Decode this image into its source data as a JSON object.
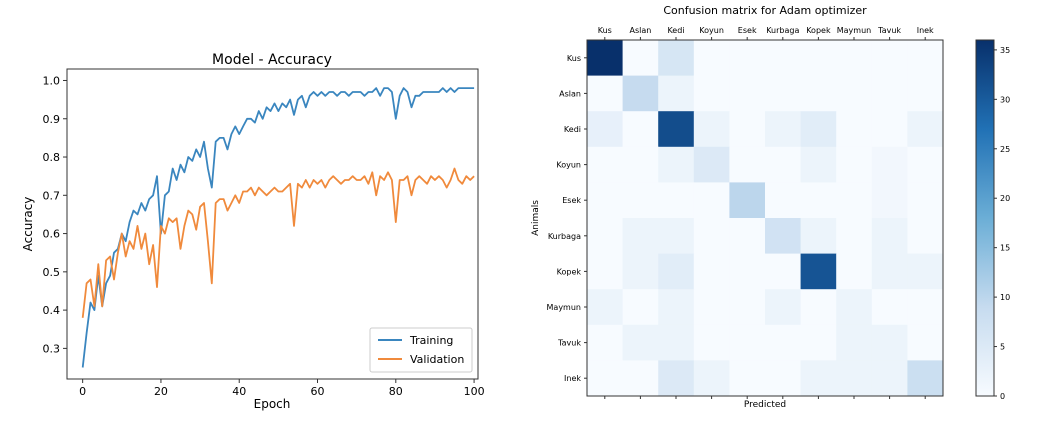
{
  "chart_data": [
    {
      "type": "line",
      "title": "Model - Accuracy",
      "xlabel": "Epoch",
      "ylabel": "Accuracy",
      "xlim": [
        -4,
        101
      ],
      "ylim": [
        0.22,
        1.03
      ],
      "xticks": [
        0,
        20,
        40,
        60,
        80,
        100
      ],
      "yticks": [
        0.3,
        0.4,
        0.5,
        0.6,
        0.7,
        0.8,
        0.9,
        1.0
      ],
      "legend_position": "bottom-right",
      "series": [
        {
          "name": "Training",
          "color": "#3a86bf",
          "x": [
            0,
            1,
            2,
            3,
            4,
            5,
            6,
            7,
            8,
            9,
            10,
            11,
            12,
            13,
            14,
            15,
            16,
            17,
            18,
            19,
            20,
            21,
            22,
            23,
            24,
            25,
            26,
            27,
            28,
            29,
            30,
            31,
            32,
            33,
            34,
            35,
            36,
            37,
            38,
            39,
            40,
            41,
            42,
            43,
            44,
            45,
            46,
            47,
            48,
            49,
            50,
            51,
            52,
            53,
            54,
            55,
            56,
            57,
            58,
            59,
            60,
            61,
            62,
            63,
            64,
            65,
            66,
            67,
            68,
            69,
            70,
            71,
            72,
            73,
            74,
            75,
            76,
            77,
            78,
            79,
            80,
            81,
            82,
            83,
            84,
            85,
            86,
            87,
            88,
            89,
            90,
            91,
            92,
            93,
            94,
            95,
            96,
            97,
            98,
            99,
            100
          ],
          "y": [
            0.25,
            0.34,
            0.42,
            0.4,
            0.49,
            0.41,
            0.47,
            0.49,
            0.55,
            0.56,
            0.6,
            0.58,
            0.63,
            0.66,
            0.65,
            0.68,
            0.66,
            0.69,
            0.7,
            0.75,
            0.6,
            0.7,
            0.71,
            0.77,
            0.74,
            0.78,
            0.76,
            0.8,
            0.79,
            0.82,
            0.8,
            0.84,
            0.77,
            0.72,
            0.84,
            0.85,
            0.85,
            0.82,
            0.86,
            0.88,
            0.86,
            0.88,
            0.9,
            0.9,
            0.89,
            0.92,
            0.9,
            0.93,
            0.92,
            0.94,
            0.92,
            0.94,
            0.93,
            0.95,
            0.91,
            0.95,
            0.96,
            0.93,
            0.96,
            0.97,
            0.96,
            0.97,
            0.96,
            0.97,
            0.97,
            0.96,
            0.97,
            0.97,
            0.96,
            0.97,
            0.97,
            0.97,
            0.96,
            0.97,
            0.97,
            0.98,
            0.96,
            0.98,
            0.98,
            0.97,
            0.9,
            0.96,
            0.98,
            0.97,
            0.93,
            0.96,
            0.96,
            0.97,
            0.97,
            0.97,
            0.97,
            0.97,
            0.98,
            0.97,
            0.98,
            0.97,
            0.98,
            0.98,
            0.98,
            0.98,
            0.98
          ]
        },
        {
          "name": "Validation",
          "color": "#f08a3c",
          "x": [
            0,
            1,
            2,
            3,
            4,
            5,
            6,
            7,
            8,
            9,
            10,
            11,
            12,
            13,
            14,
            15,
            16,
            17,
            18,
            19,
            20,
            21,
            22,
            23,
            24,
            25,
            26,
            27,
            28,
            29,
            30,
            31,
            32,
            33,
            34,
            35,
            36,
            37,
            38,
            39,
            40,
            41,
            42,
            43,
            44,
            45,
            46,
            47,
            48,
            49,
            50,
            51,
            52,
            53,
            54,
            55,
            56,
            57,
            58,
            59,
            60,
            61,
            62,
            63,
            64,
            65,
            66,
            67,
            68,
            69,
            70,
            71,
            72,
            73,
            74,
            75,
            76,
            77,
            78,
            79,
            80,
            81,
            82,
            83,
            84,
            85,
            86,
            87,
            88,
            89,
            90,
            91,
            92,
            93,
            94,
            95,
            96,
            97,
            98,
            99,
            100
          ],
          "y": [
            0.38,
            0.47,
            0.48,
            0.41,
            0.52,
            0.41,
            0.53,
            0.54,
            0.48,
            0.55,
            0.6,
            0.54,
            0.58,
            0.56,
            0.62,
            0.56,
            0.6,
            0.52,
            0.57,
            0.46,
            0.62,
            0.6,
            0.64,
            0.63,
            0.64,
            0.56,
            0.62,
            0.66,
            0.65,
            0.61,
            0.67,
            0.68,
            0.58,
            0.47,
            0.68,
            0.69,
            0.69,
            0.66,
            0.68,
            0.7,
            0.68,
            0.71,
            0.71,
            0.72,
            0.7,
            0.72,
            0.71,
            0.7,
            0.71,
            0.72,
            0.71,
            0.71,
            0.72,
            0.73,
            0.62,
            0.73,
            0.72,
            0.74,
            0.72,
            0.74,
            0.73,
            0.74,
            0.72,
            0.74,
            0.75,
            0.74,
            0.73,
            0.74,
            0.74,
            0.75,
            0.74,
            0.74,
            0.75,
            0.73,
            0.76,
            0.7,
            0.75,
            0.74,
            0.76,
            0.74,
            0.63,
            0.74,
            0.74,
            0.75,
            0.7,
            0.74,
            0.75,
            0.74,
            0.73,
            0.75,
            0.74,
            0.75,
            0.74,
            0.72,
            0.74,
            0.77,
            0.74,
            0.73,
            0.75,
            0.74,
            0.75
          ]
        }
      ]
    },
    {
      "type": "heatmap",
      "title": "Confusion matrix for Adam optimizer",
      "xlabel": "Predicted",
      "ylabel": "Animals",
      "x_categories": [
        "Kus",
        "Aslan",
        "Kedi",
        "Koyun",
        "Esek",
        "Kurbaga",
        "Kopek",
        "Maymun",
        "Tavuk",
        "Inek"
      ],
      "y_categories": [
        "Kus",
        "Aslan",
        "Kedi",
        "Koyun",
        "Esek",
        "Kurbaga",
        "Kopek",
        "Maymun",
        "Tavuk",
        "Inek"
      ],
      "values": [
        [
          36,
          0,
          6,
          0,
          0,
          0,
          0,
          0,
          0,
          0
        ],
        [
          0,
          9,
          2,
          0,
          0,
          0,
          0,
          0,
          0,
          0
        ],
        [
          3,
          0,
          32,
          2,
          0,
          2,
          4,
          0,
          0,
          2
        ],
        [
          0,
          0,
          2,
          5,
          0,
          0,
          2,
          0,
          1,
          0
        ],
        [
          0,
          0,
          0,
          0,
          10,
          0,
          0,
          0,
          1,
          0
        ],
        [
          0,
          2,
          2,
          0,
          0,
          7,
          2,
          0,
          2,
          0
        ],
        [
          0,
          2,
          4,
          0,
          0,
          0,
          31,
          0,
          2,
          2
        ],
        [
          2,
          0,
          2,
          0,
          0,
          2,
          0,
          2,
          0,
          0
        ],
        [
          0,
          2,
          2,
          0,
          0,
          0,
          0,
          2,
          2,
          0
        ],
        [
          0,
          0,
          5,
          2,
          0,
          0,
          2,
          2,
          2,
          8
        ]
      ],
      "vmin": 0,
      "vmax": 36,
      "colorbar_ticks": [
        0,
        5,
        10,
        15,
        20,
        25,
        30,
        35
      ],
      "colormap": [
        "#f7fbff",
        "#c6dbef",
        "#6baed6",
        "#2171b5",
        "#08306b"
      ]
    }
  ]
}
